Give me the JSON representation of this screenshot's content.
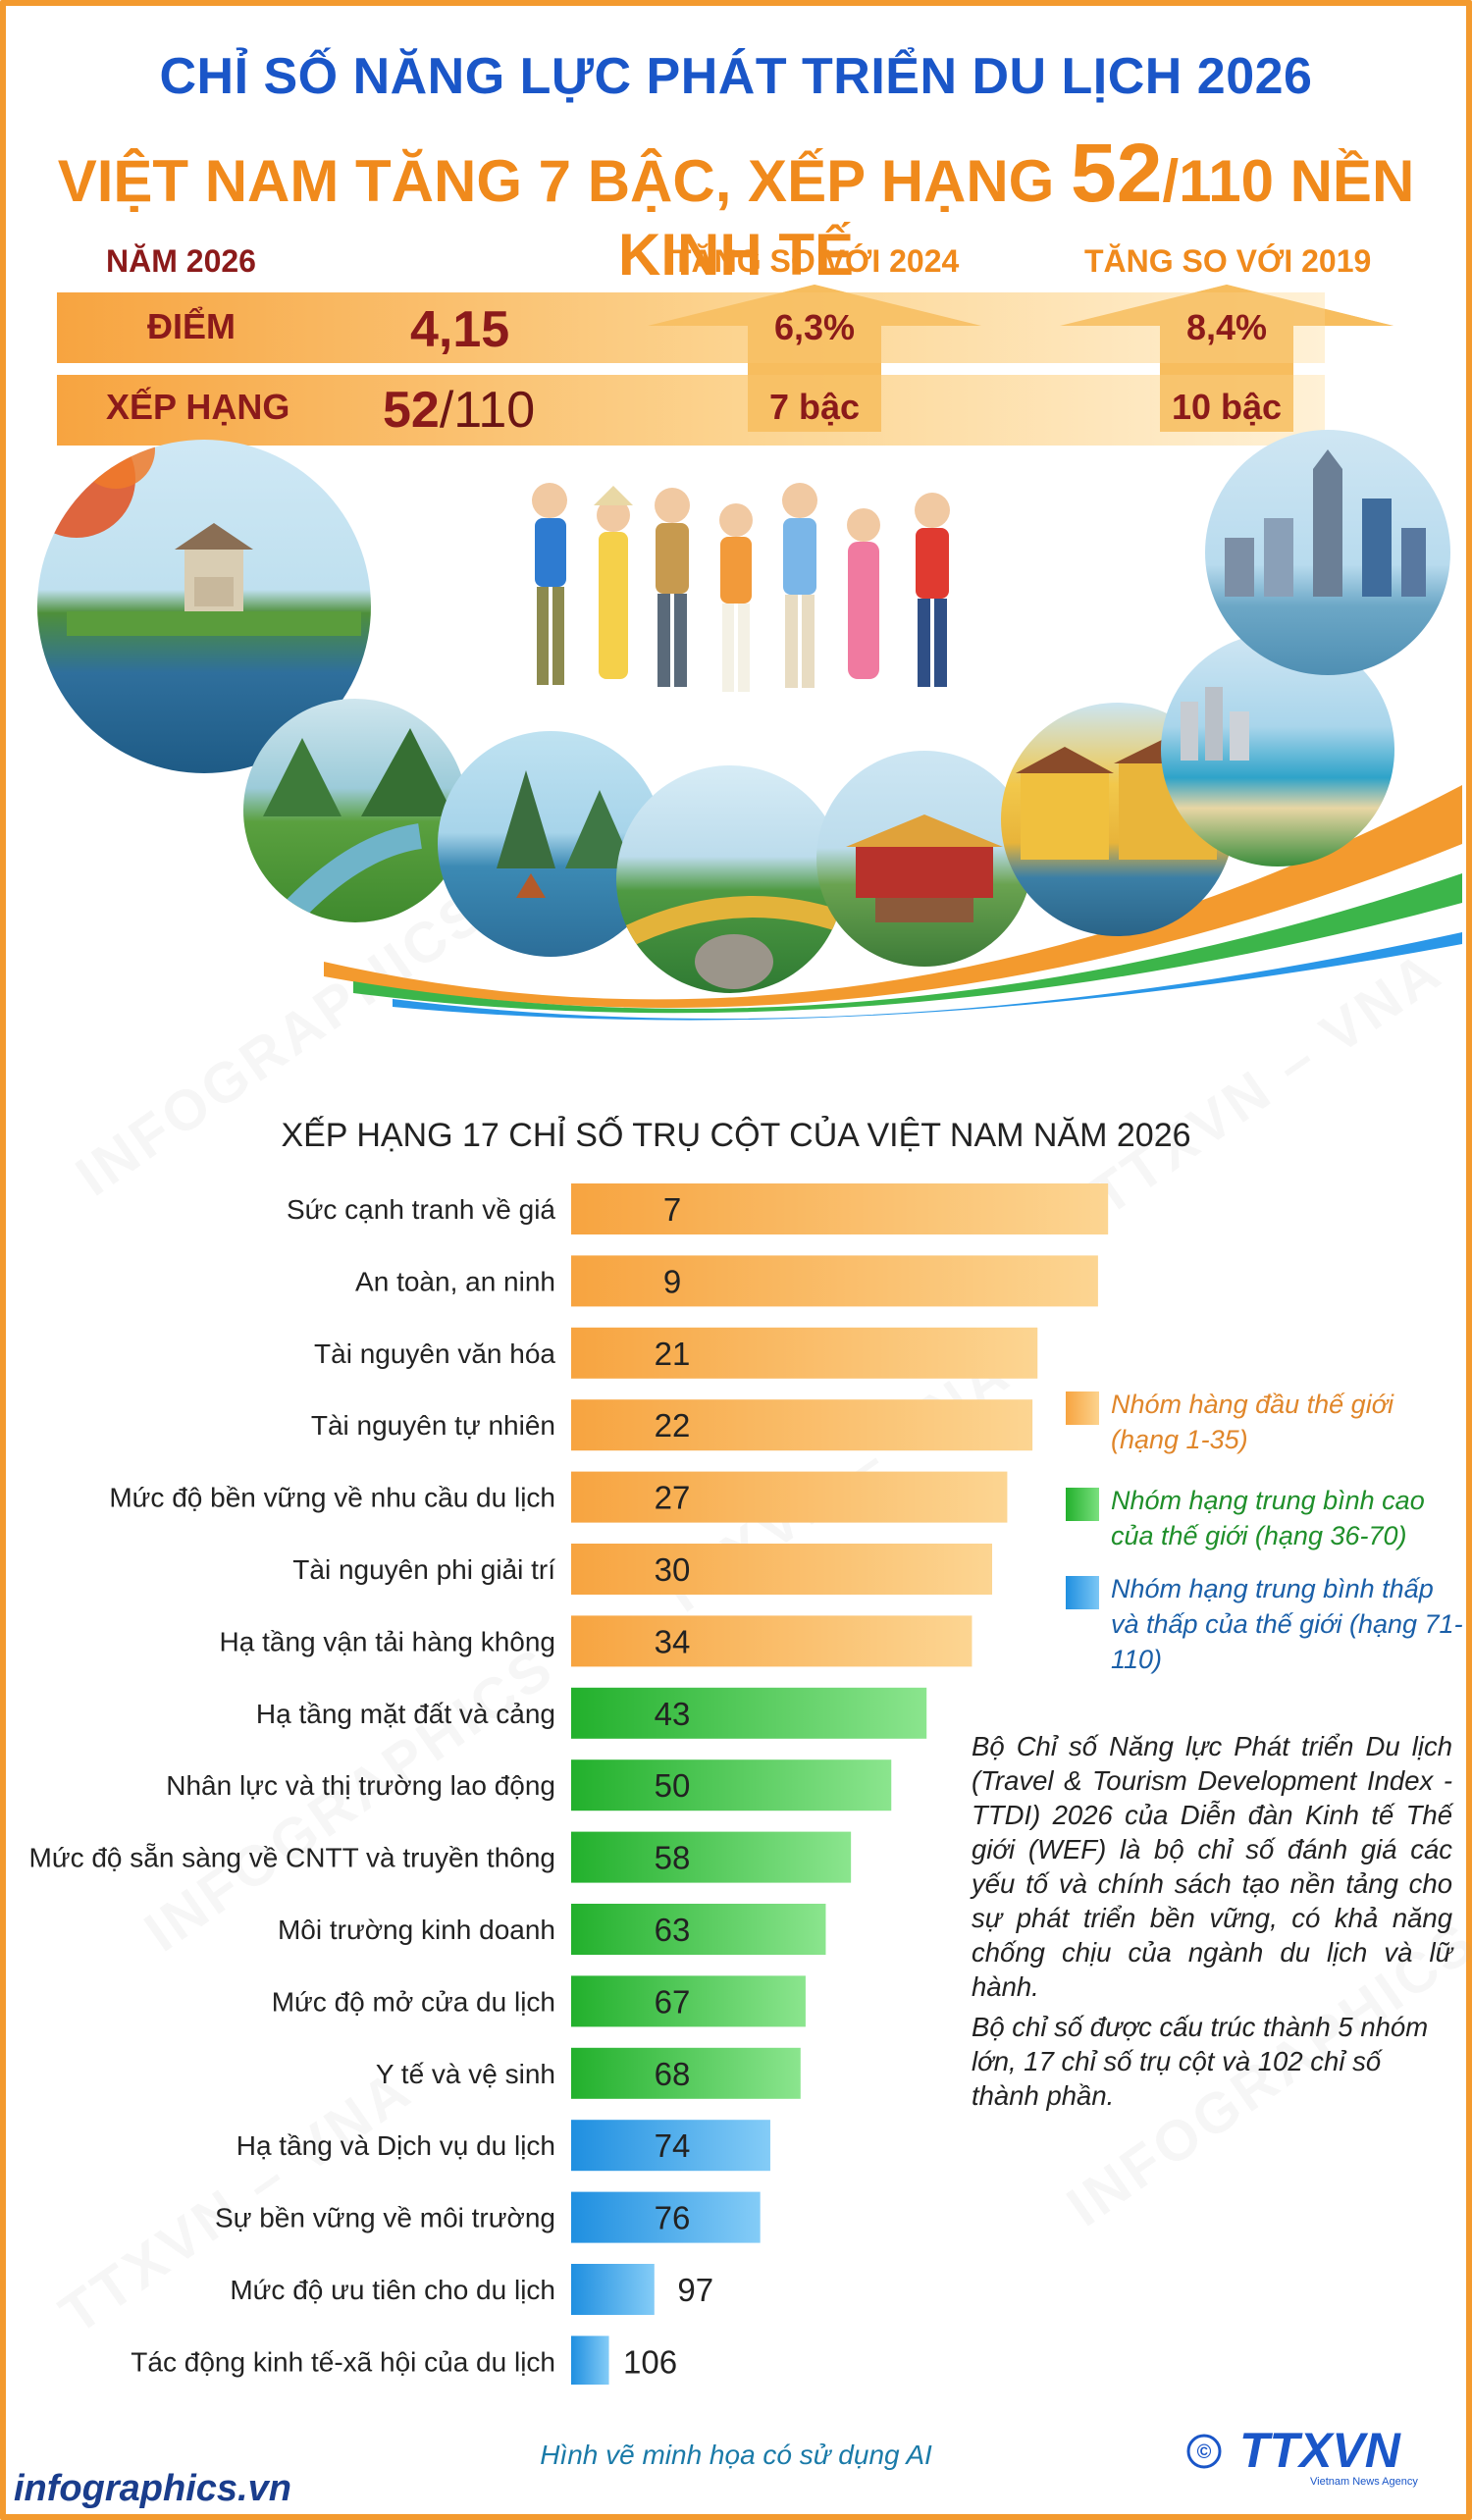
{
  "header": {
    "title_line1": "CHỈ SỐ NĂNG LỰC PHÁT TRIỂN DU LỊCH 2026",
    "title_line2_a": "VIỆT NAM TĂNG 7 BẬC, XẾP HẠNG ",
    "title_line2_b": "52",
    "title_line2_c": "/110 NỀN KINH TẾ"
  },
  "summary": {
    "year_label": "NĂM 2026",
    "vs2024_label": "TĂNG SO VỚI 2024",
    "vs2019_label": "TĂNG SO VỚI 2019",
    "score_label": "ĐIỂM",
    "score_value": "4,15",
    "rank_label": "XẾP HẠNG",
    "rank_value": "52",
    "rank_total": "/110",
    "score_vs2024": "6,3%",
    "score_vs2019": "8,4%",
    "rank_vs2024": "7 bậc",
    "rank_vs2019": "10 bậc"
  },
  "colors": {
    "orange": "#f7a440",
    "green": "#2bbf35",
    "blue": "#2a97e8",
    "title_blue": "#1a56c8",
    "title_orange": "#f08a1c",
    "dark_red": "#8b1a1a"
  },
  "chart_data": {
    "type": "bar",
    "orientation": "horizontal",
    "title": "XẾP HẠNG 17 CHỈ SỐ TRỤ CỘT CỦA VIỆT NAM NĂM 2026",
    "categories": [
      "Sức cạnh tranh về giá",
      "An toàn, an ninh",
      "Tài nguyên văn hóa",
      "Tài nguyên tự nhiên",
      "Mức độ bền vững về nhu cầu du lịch",
      "Tài nguyên phi giải trí",
      "Hạ tầng vận tải hàng không",
      "Hạ tầng mặt đất và cảng",
      "Nhân lực và thị trường lao động",
      "Mức độ sẵn sàng về CNTT và truyền thông",
      "Môi trường kinh doanh",
      "Mức độ mở cửa du lịch",
      "Y tế và vệ sinh",
      "Hạ tầng và Dịch vụ du lịch",
      "Sự bền vững về môi trường",
      "Mức độ ưu tiên cho du lịch",
      "Tác động kinh tế-xã hội của du lịch"
    ],
    "values": [
      7,
      9,
      21,
      22,
      27,
      30,
      34,
      43,
      50,
      58,
      63,
      67,
      68,
      74,
      76,
      97,
      106
    ],
    "groups": [
      "top",
      "top",
      "top",
      "top",
      "top",
      "top",
      "top",
      "mid",
      "mid",
      "mid",
      "mid",
      "mid",
      "mid",
      "low",
      "low",
      "low",
      "low"
    ],
    "scale_max": 110,
    "note": "bar length is inverse of rank (better rank = longer bar)",
    "legend": [
      {
        "group": "top",
        "label": "Nhóm hàng đầu thế giới (hạng 1-35)"
      },
      {
        "group": "mid",
        "label": "Nhóm hạng trung bình cao của thế giới (hạng 36-70)"
      },
      {
        "group": "low",
        "label": "Nhóm hạng trung bình thấp và thấp của thế giới (hạng 71-110)"
      }
    ]
  },
  "notes": {
    "paragraph1": "Bộ Chỉ số Năng lực Phát triển Du lịch (Travel & Tourism Development Index - TTDI) 2026 của Diễn đàn Kinh tế Thế giới (WEF) là bộ chỉ số đánh giá các yếu tố và chính sách tạo nền tảng cho sự phát triển bền vững, có khả năng chống chịu của ngành du lịch và lữ hành.",
    "paragraph2": "Bộ chỉ số được cấu trúc thành 5 nhóm lớn, 17 chỉ số trụ cột và 102 chỉ số thành phần."
  },
  "footer": {
    "ai_note": "Hình vẽ minh họa có sử dụng AI",
    "site": "infographics.vn",
    "copyright": "©",
    "logo_text": "TTXVN",
    "logo_sub": "Vietnam News Agency"
  },
  "watermarks": {
    "text1": "INFOGRAPHICS",
    "text2": "TTXVN – VNA"
  }
}
